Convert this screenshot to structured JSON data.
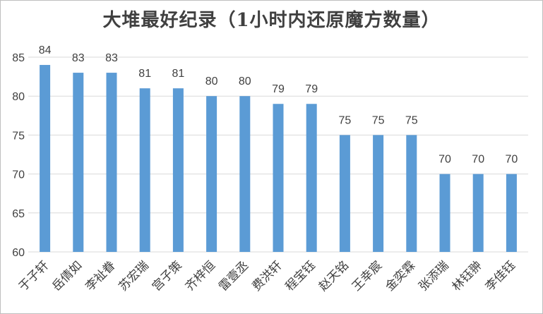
{
  "chart_data": {
    "type": "bar",
    "title": "大堆最好纪录（1小时内还原魔方数量）",
    "xlabel": "",
    "ylabel": "",
    "categories": [
      "于子轩",
      "岳倩如",
      "李祉眷",
      "苏宏瑞",
      "宫子策",
      "齐梓恒",
      "雷壹丞",
      "费洪轩",
      "程宝钰",
      "赵天铭",
      "王幸宸",
      "金奕霖",
      "张添瑞",
      "林钰翀",
      "李佳钰"
    ],
    "values": [
      84,
      83,
      83,
      81,
      81,
      80,
      80,
      79,
      79,
      75,
      75,
      75,
      70,
      70,
      70
    ],
    "ylim": [
      60,
      85
    ],
    "yticks": [
      60,
      65,
      70,
      75,
      80,
      85
    ],
    "grid": true,
    "bar_color": "#5b9bd5",
    "grid_color": "#d9d9d9",
    "data_labels": true,
    "legend": "none"
  }
}
